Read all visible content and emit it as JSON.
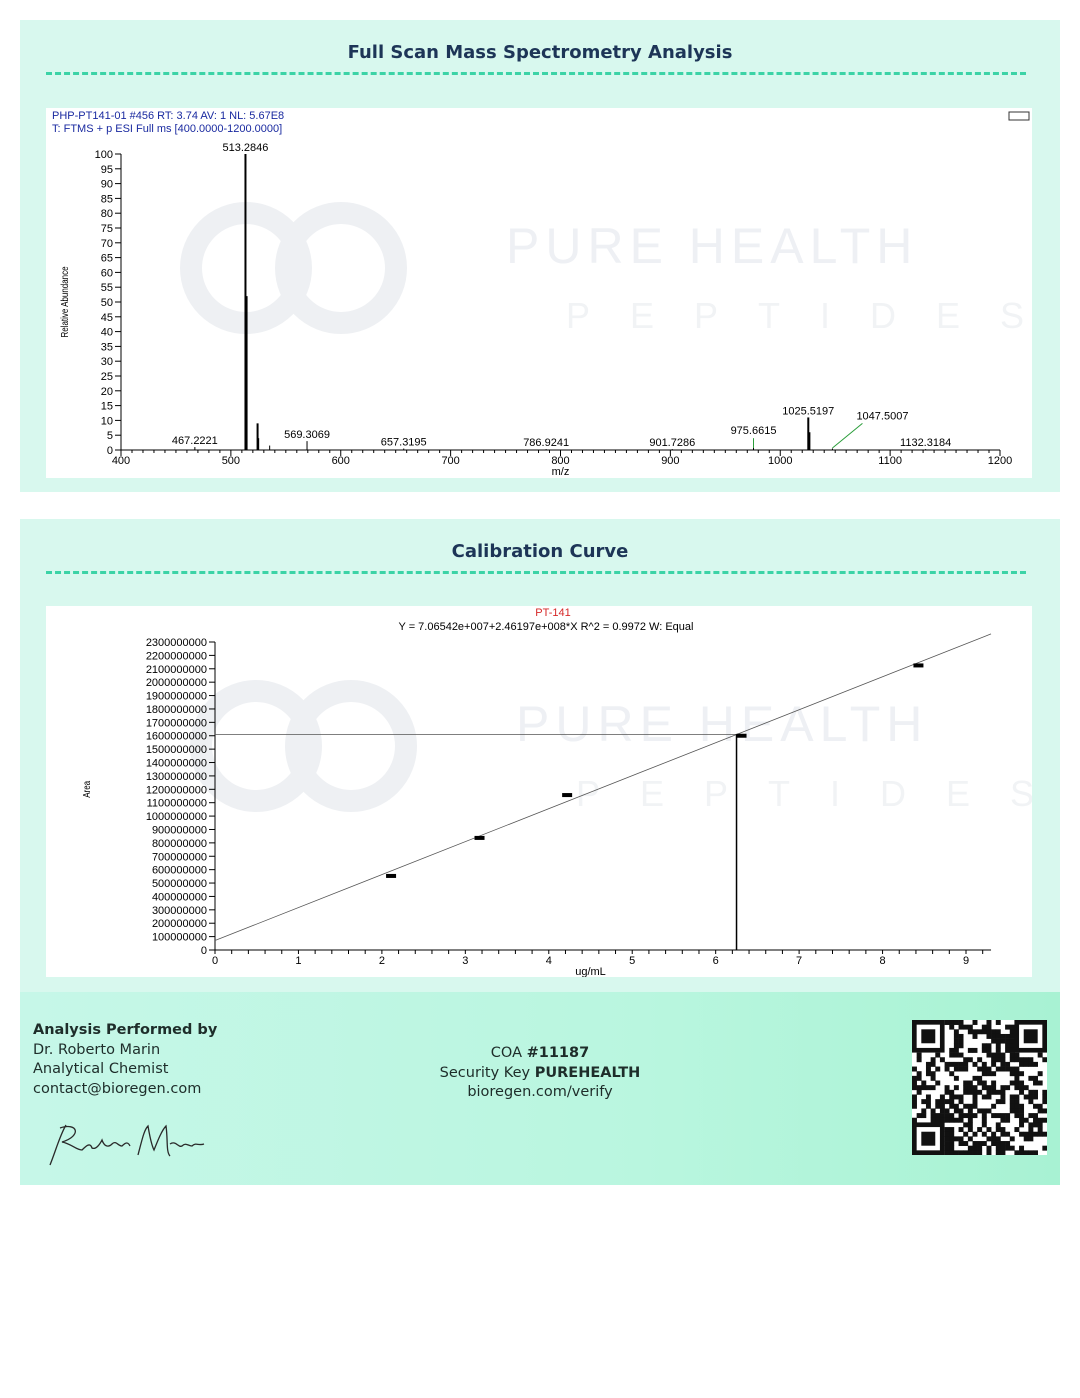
{
  "watermark": {
    "line1": "PURE HEALTH",
    "line2": "PEPTIDES"
  },
  "chart_data": [
    {
      "type": "bar",
      "title": "Full Scan Mass Spectrometry Analysis",
      "header_line1": "PHP-PT141-01 #456   RT: 3.74   AV: 1   NL: 5.67E8",
      "header_line2": "T: FTMS + p ESI Full ms [400.0000-1200.0000]",
      "xlabel": "m/z",
      "ylabel": "Relative Abundance",
      "xlim": [
        400,
        1200
      ],
      "ylim": [
        0,
        100
      ],
      "xticks": [
        400,
        500,
        600,
        700,
        800,
        900,
        1000,
        1100,
        1200
      ],
      "yticks": [
        0,
        5,
        10,
        15,
        20,
        25,
        30,
        35,
        40,
        45,
        50,
        55,
        60,
        65,
        70,
        75,
        80,
        85,
        90,
        95,
        100
      ],
      "peaks": [
        {
          "mz": 467.2221,
          "abundance": 1,
          "label": "467.2221"
        },
        {
          "mz": 513.2846,
          "abundance": 100,
          "label": "513.2846"
        },
        {
          "mz": 514.29,
          "abundance": 52
        },
        {
          "mz": 524.3,
          "abundance": 9
        },
        {
          "mz": 525.3,
          "abundance": 4
        },
        {
          "mz": 535.3,
          "abundance": 1.5
        },
        {
          "mz": 569.3069,
          "abundance": 3,
          "label": "569.3069"
        },
        {
          "mz": 657.3195,
          "abundance": 0.5,
          "label": "657.3195"
        },
        {
          "mz": 786.9241,
          "abundance": 0.3,
          "label": "786.9241"
        },
        {
          "mz": 901.7286,
          "abundance": 0.3,
          "label": "901.7286"
        },
        {
          "mz": 975.6615,
          "abundance": 1,
          "label": "975.6615",
          "leader": "green"
        },
        {
          "mz": 1025.5197,
          "abundance": 11,
          "label": "1025.5197"
        },
        {
          "mz": 1026.52,
          "abundance": 6
        },
        {
          "mz": 1047.5007,
          "abundance": 0.5,
          "label": "1047.5007",
          "leader": "green"
        },
        {
          "mz": 1132.3184,
          "abundance": 0.3,
          "label": "1132.3184"
        }
      ]
    },
    {
      "type": "scatter",
      "title": "Calibration Curve",
      "series_title": "PT-141",
      "equation": "Y = 7.06542e+007+2.46197e+008*X    R^2 = 0.9972    W: Equal",
      "xlabel": "ug/mL",
      "ylabel": "Area",
      "xlim": [
        0,
        9.3
      ],
      "ylim": [
        0,
        2300000000
      ],
      "xticks": [
        0,
        1,
        2,
        3,
        4,
        5,
        6,
        7,
        8,
        9
      ],
      "yticks": [
        0,
        100000000,
        200000000,
        300000000,
        400000000,
        500000000,
        600000000,
        700000000,
        800000000,
        900000000,
        1000000000,
        1100000000,
        1200000000,
        1300000000,
        1400000000,
        1500000000,
        1600000000,
        1700000000,
        1800000000,
        1900000000,
        2000000000,
        2100000000,
        2200000000,
        2300000000
      ],
      "fit": {
        "intercept": 70654200,
        "slope": 246197000
      },
      "points": [
        {
          "x": 2.11,
          "y": 553000000
        },
        {
          "x": 3.17,
          "y": 837000000
        },
        {
          "x": 4.22,
          "y": 1157000000
        },
        {
          "x": 6.31,
          "y": 1600000000
        },
        {
          "x": 8.43,
          "y": 2125000000
        }
      ],
      "sample": {
        "x": 6.25,
        "y": 1610000000
      }
    }
  ],
  "footer": {
    "heading": "Analysis Performed by",
    "name": "Dr. Roberto Marin",
    "role": "Analytical Chemist",
    "email": "contact@bioregen.com",
    "signature": "Roberto Marin",
    "coa_label": "COA ",
    "coa_number": "#11187",
    "key_label": "Security Key ",
    "key_value": "PUREHEALTH",
    "verify_url": "bioregen.com/verify"
  }
}
